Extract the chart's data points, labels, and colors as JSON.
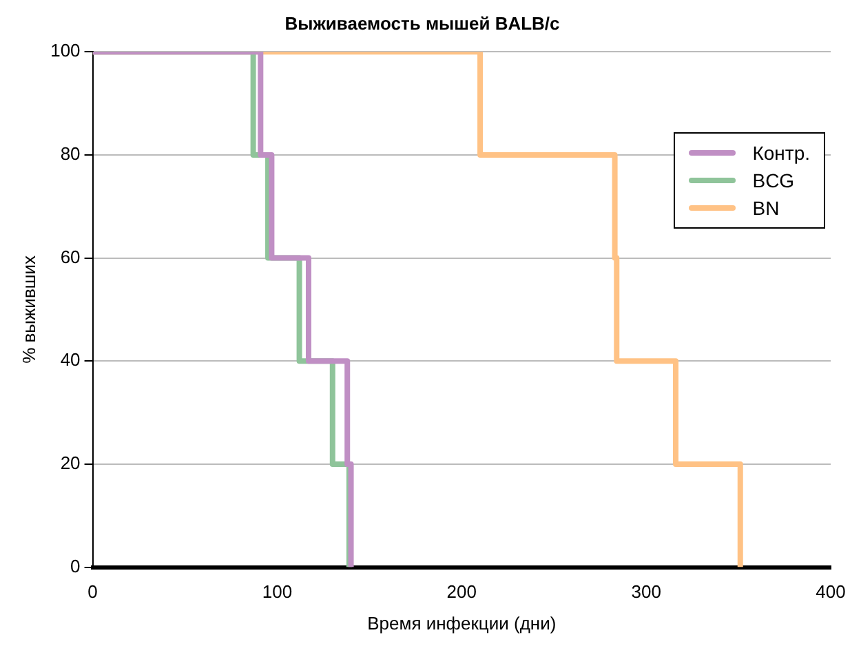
{
  "chart_data": {
    "type": "step",
    "title": "Выживаемость мышей BALB/c",
    "xlabel": "Время инфекции (дни)",
    "ylabel": "% выживших",
    "series": [
      {
        "name": "Контр.",
        "color": "#c08fc4",
        "x": [
          0,
          91,
          97,
          117,
          138,
          140
        ],
        "values": [
          100,
          80,
          60,
          40,
          20,
          0
        ]
      },
      {
        "name": "BCG",
        "color": "#8fc49a",
        "x": [
          0,
          87,
          95,
          112,
          130,
          139
        ],
        "values": [
          100,
          80,
          60,
          40,
          20,
          0
        ]
      },
      {
        "name": "BN",
        "color": "#ffc285",
        "x": [
          0,
          210,
          283,
          284,
          316,
          351
        ],
        "values": [
          100,
          80,
          60,
          40,
          20,
          0
        ]
      }
    ],
    "xlim": [
      0,
      400
    ],
    "xticks": [
      0,
      100,
      200,
      300,
      400
    ],
    "ylim": [
      0,
      100
    ],
    "yticks": [
      0,
      20,
      40,
      60,
      80,
      100
    ],
    "grid": "y",
    "legend": "top right"
  }
}
